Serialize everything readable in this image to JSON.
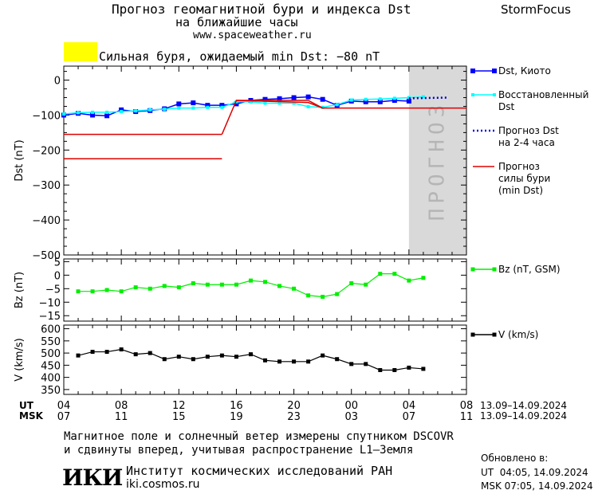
{
  "header": {
    "title_line1": "Прогноз геомагнитной бури и индекса Dst",
    "title_line2": "на ближайшие часы",
    "url": "www.spaceweather.ru",
    "brand": "StormFocus",
    "storm_label": "Сильная буря, ожидаемый min Dst: −80 nT",
    "storm_color": "#ffff00"
  },
  "legend": {
    "dst_kyoto": "Dst, Киото",
    "restored_1": "Восстановленный",
    "restored_2": "Dst",
    "forecast_1": "Прогноз Dst",
    "forecast_2": "на 2-4 часа",
    "storm_1": "Прогноз",
    "storm_2": "силы бури",
    "storm_3": "(min Dst)",
    "bz": "Bz (nT, GSM)",
    "v": "V (km/s)"
  },
  "forecast_zone_label": "ПРОГНОЗ",
  "time_axis": {
    "ut_label": "UT",
    "msk_label": "MSK",
    "ut_ticks": [
      "04",
      "08",
      "12",
      "16",
      "20",
      "00",
      "04",
      "08"
    ],
    "msk_ticks": [
      "07",
      "11",
      "15",
      "19",
      "23",
      "03",
      "07",
      "11"
    ],
    "date_range_ut": "13.09–14.09.2024",
    "date_range_msk": "13.09–14.09.2024"
  },
  "footer": {
    "note_line1": "Магнитное поле и солнечный ветер измерены спутником DSCOVR",
    "note_line2": "и сдвинуты вперед, учитывая распространение L1–Земля",
    "institute_logo": "ИКИ",
    "institute_name": "Институт космических исследований РАН",
    "institute_site": "iki.cosmos.ru",
    "updated_label": "Обновлено в:",
    "updated_ut": "UT  04:05, 14.09.2024",
    "updated_msk": "MSK 07:05, 14.09.2024"
  },
  "colors": {
    "dst": "#0000ff",
    "restored": "#00ffff",
    "forecast": "#0000cc",
    "storm": "#dd0000",
    "bz": "#00ee00",
    "v": "#000000",
    "forecast_zone": "#d9d9d9"
  },
  "chart_data": [
    {
      "type": "line",
      "ylabel": "Dst (nT)",
      "x_unit": "hours since 04 UT 13.09.2024",
      "xlim": [
        0,
        28
      ],
      "ylim": [
        -500,
        40
      ],
      "yticks": [
        0,
        -100,
        -200,
        -300,
        -400,
        -500
      ],
      "forecast_zone_x": [
        24,
        28
      ],
      "series": [
        {
          "name": "Dst, Киото",
          "style": "line-squares",
          "x": [
            0,
            1,
            2,
            3,
            4,
            5,
            6,
            7,
            8,
            9,
            10,
            11,
            12,
            13,
            14,
            15,
            16,
            17,
            18,
            19,
            20,
            21,
            22,
            23,
            24
          ],
          "y": [
            -100,
            -95,
            -100,
            -102,
            -85,
            -90,
            -87,
            -82,
            -68,
            -65,
            -72,
            -72,
            -68,
            -58,
            -55,
            -53,
            -50,
            -48,
            -55,
            -72,
            -60,
            -62,
            -62,
            -58,
            -60
          ]
        },
        {
          "name": "Восстановленный Dst",
          "style": "line-small-squares",
          "x": [
            0,
            1,
            2,
            3,
            4,
            5,
            6,
            7,
            8,
            9,
            10,
            11,
            12,
            13,
            14,
            15,
            16,
            17,
            18,
            19,
            20,
            21,
            22,
            23,
            24,
            25
          ],
          "y": [
            -97,
            -93,
            -92,
            -92,
            -90,
            -88,
            -85,
            -83,
            -80,
            -80,
            -78,
            -78,
            -62,
            -62,
            -66,
            -66,
            -66,
            -76,
            -78,
            -70,
            -57,
            -55,
            -54,
            -52,
            -50,
            -48
          ]
        },
        {
          "name": "Прогноз Dst на 2-4 часа",
          "style": "dotted",
          "x": [
            24,
            26.7
          ],
          "y": [
            -52,
            -50
          ]
        },
        {
          "name": "Прогноз силы бури (min Dst)",
          "style": "step-lines",
          "segments": [
            {
              "x": [
                0,
                11
              ],
              "y": [
                -155,
                -155
              ]
            },
            {
              "x": [
                0,
                11
              ],
              "y": [
                -225,
                -225
              ]
            },
            {
              "x": [
                11,
                12,
                17,
                18,
                28
              ],
              "y": [
                -155,
                -58,
                -58,
                -80,
                -80
              ]
            },
            {
              "x": [
                12,
                17,
                18
              ],
              "y": [
                -58,
                -64,
                -80
              ]
            }
          ]
        }
      ]
    },
    {
      "type": "line",
      "ylabel": "Bz (nT)",
      "xlim": [
        0,
        28
      ],
      "ylim": [
        -17,
        6
      ],
      "yticks": [
        5,
        0,
        -5,
        -10,
        -15
      ],
      "series": [
        {
          "name": "Bz (nT, GSM)",
          "x": [
            1,
            2,
            3,
            4,
            5,
            6,
            7,
            8,
            9,
            10,
            11,
            12,
            13,
            14,
            15,
            16,
            17,
            18,
            19,
            20,
            21,
            22,
            23,
            24,
            25
          ],
          "y": [
            -6,
            -6,
            -5.5,
            -6,
            -4.5,
            -5,
            -4,
            -4.5,
            -3,
            -3.5,
            -3.5,
            -3.5,
            -2,
            -2.5,
            -4,
            -5,
            -7.5,
            -8,
            -7,
            -3,
            -3.5,
            0.5,
            0.5,
            -2,
            -1
          ]
        }
      ]
    },
    {
      "type": "line",
      "ylabel": "V (km/s)",
      "xlim": [
        0,
        28
      ],
      "ylim": [
        330,
        615
      ],
      "yticks": [
        600,
        550,
        500,
        450,
        400,
        350
      ],
      "series": [
        {
          "name": "V (km/s)",
          "x": [
            1,
            2,
            3,
            4,
            5,
            6,
            7,
            8,
            9,
            10,
            11,
            12,
            13,
            14,
            15,
            16,
            17,
            18,
            19,
            20,
            21,
            22,
            23,
            24,
            25
          ],
          "y": [
            490,
            505,
            505,
            515,
            495,
            500,
            475,
            485,
            475,
            485,
            490,
            485,
            495,
            470,
            465,
            465,
            465,
            490,
            475,
            455,
            455,
            430,
            430,
            440,
            435
          ]
        }
      ]
    }
  ]
}
